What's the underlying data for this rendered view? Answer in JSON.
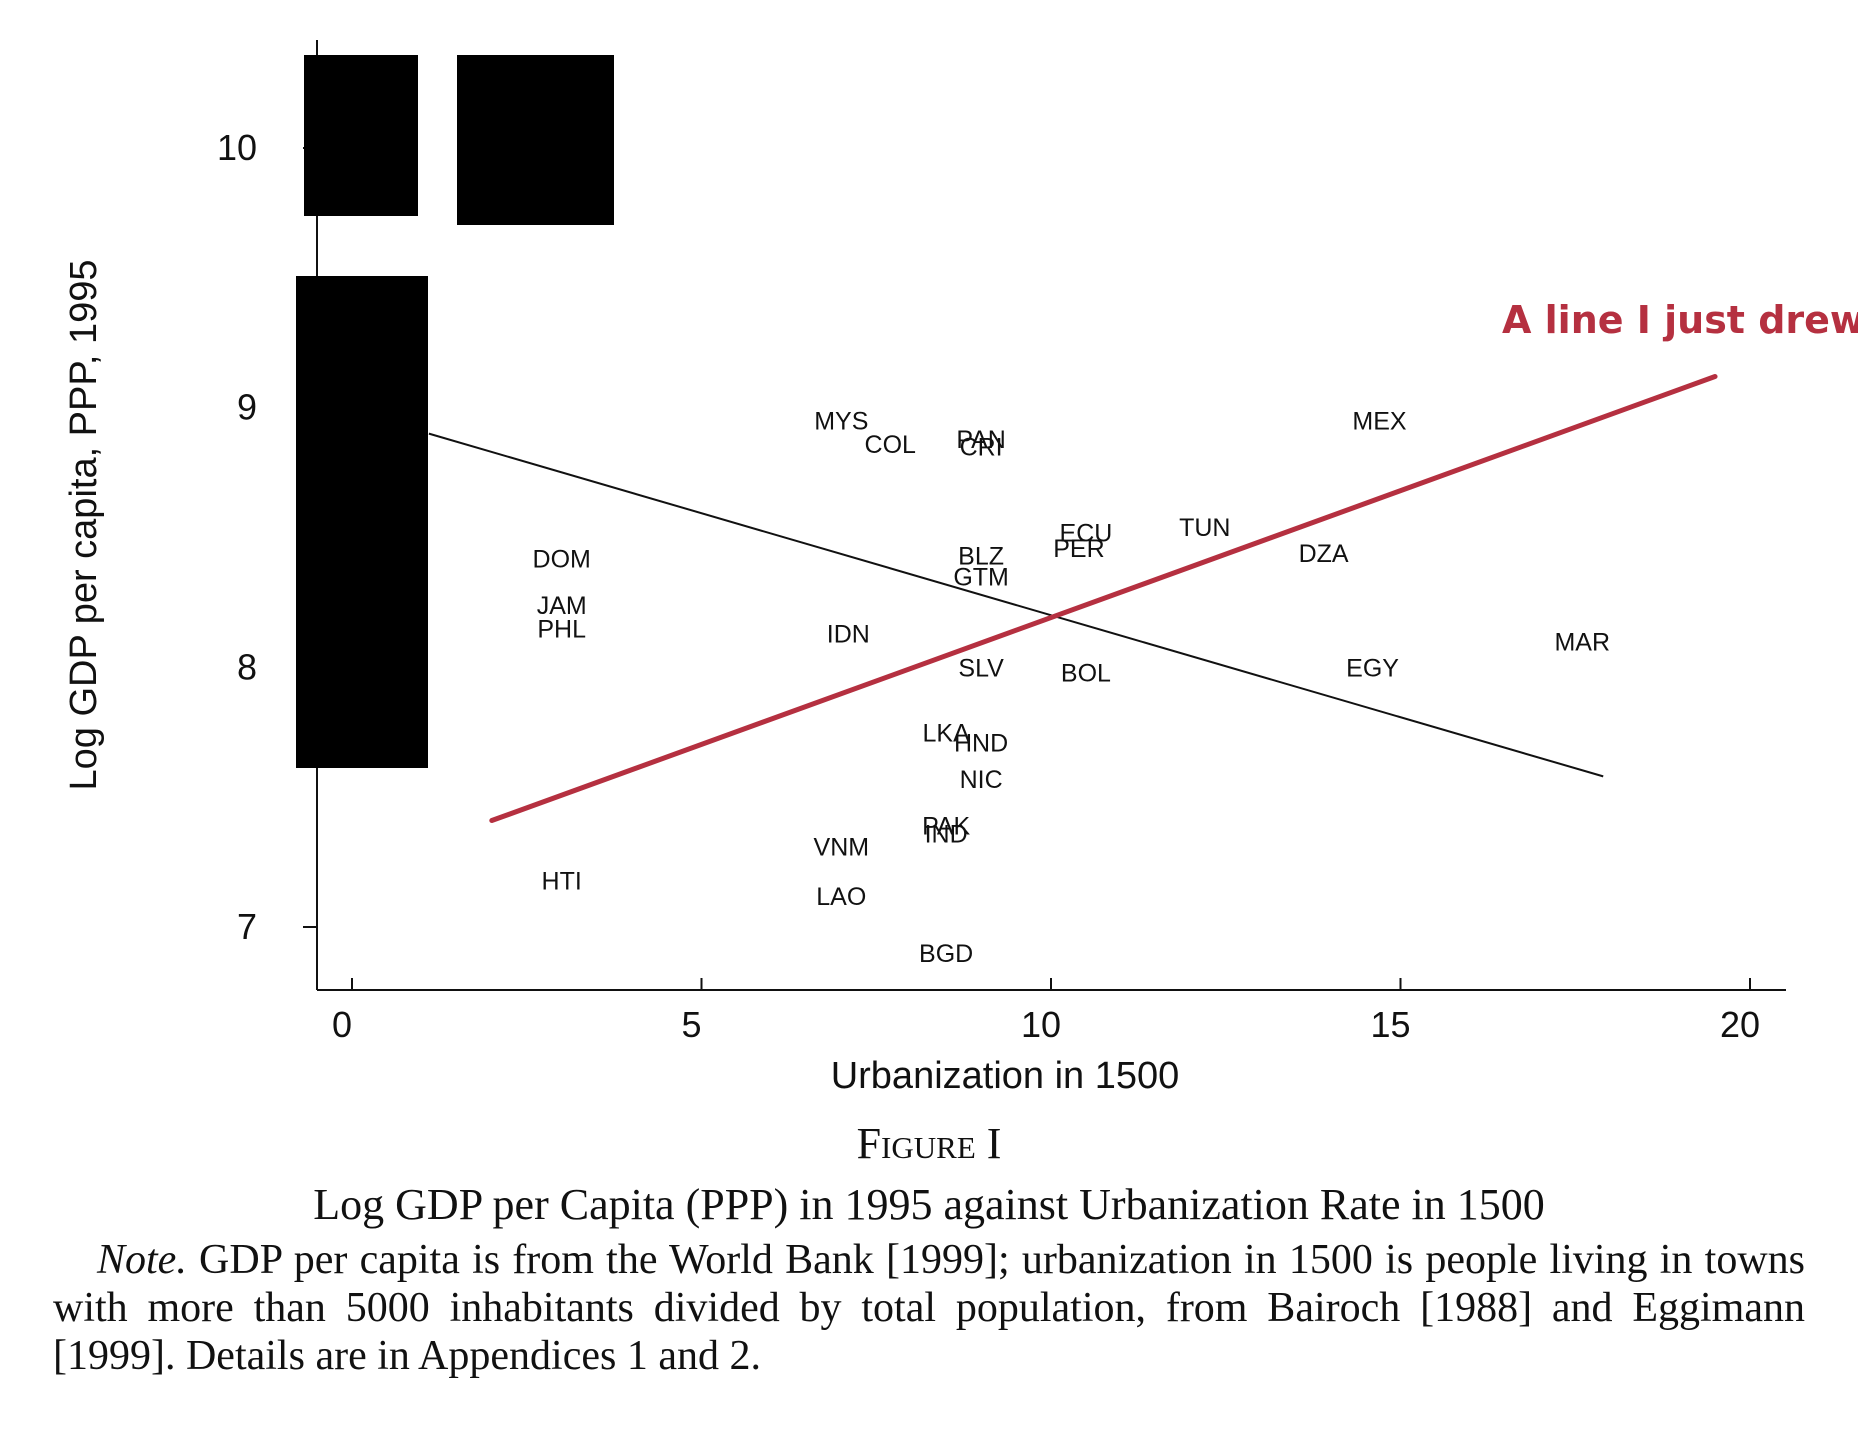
{
  "chart_data": {
    "type": "scatter",
    "xlabel": "Urbanization in 1500",
    "ylabel": "Log GDP per capita, PPP, 1995",
    "xlim": [
      -0.5,
      20.5
    ],
    "ylim": [
      6.77,
      10.3
    ],
    "xticks": [
      0,
      5,
      10,
      15,
      20
    ],
    "yticks": [
      7,
      8,
      9,
      10
    ],
    "grid": false,
    "points": [
      {
        "label": "MYS",
        "x": 7.0,
        "y": 8.95
      },
      {
        "label": "COL",
        "x": 7.7,
        "y": 8.86
      },
      {
        "label": "PAN",
        "x": 9.0,
        "y": 8.88
      },
      {
        "label": "CRI",
        "x": 9.0,
        "y": 8.85
      },
      {
        "label": "MEX",
        "x": 14.7,
        "y": 8.95
      },
      {
        "label": "DOM",
        "x": 3.0,
        "y": 8.42
      },
      {
        "label": "ECU",
        "x": 10.5,
        "y": 8.52
      },
      {
        "label": "PER",
        "x": 10.4,
        "y": 8.46
      },
      {
        "label": "TUN",
        "x": 12.2,
        "y": 8.54
      },
      {
        "label": "DZA",
        "x": 13.9,
        "y": 8.44
      },
      {
        "label": "BLZ",
        "x": 9.0,
        "y": 8.43
      },
      {
        "label": "GTM",
        "x": 9.0,
        "y": 8.35
      },
      {
        "label": "JAM",
        "x": 3.0,
        "y": 8.24
      },
      {
        "label": "PHL",
        "x": 3.0,
        "y": 8.15
      },
      {
        "label": "IDN",
        "x": 7.1,
        "y": 8.13
      },
      {
        "label": "MAR",
        "x": 17.6,
        "y": 8.1
      },
      {
        "label": "SLV",
        "x": 9.0,
        "y": 8.0
      },
      {
        "label": "BOL",
        "x": 10.5,
        "y": 7.98
      },
      {
        "label": "EGY",
        "x": 14.6,
        "y": 8.0
      },
      {
        "label": "LKA",
        "x": 8.5,
        "y": 7.75
      },
      {
        "label": "HND",
        "x": 9.0,
        "y": 7.71
      },
      {
        "label": "NIC",
        "x": 9.0,
        "y": 7.57
      },
      {
        "label": "PAK",
        "x": 8.5,
        "y": 7.39
      },
      {
        "label": "IND",
        "x": 8.5,
        "y": 7.36
      },
      {
        "label": "VNM",
        "x": 7.0,
        "y": 7.31
      },
      {
        "label": "HTI",
        "x": 3.0,
        "y": 7.18
      },
      {
        "label": "LAO",
        "x": 7.0,
        "y": 7.12
      },
      {
        "label": "BGD",
        "x": 8.5,
        "y": 6.9
      }
    ],
    "fit_line": {
      "x1": 1.1,
      "y1": 8.9,
      "x2": 17.9,
      "y2": 7.58
    },
    "drawn_line": {
      "x1": 2.0,
      "y1": 7.41,
      "x2": 19.5,
      "y2": 9.12,
      "color": "#b53040"
    },
    "annotation": "A line I just drew",
    "redaction_color": "#000000"
  },
  "caption": {
    "figure_label": "Figure I",
    "title": "Log GDP per Capita (PPP) in 1995 against Urbanization Rate in 1500",
    "note_label": "Note.",
    "note_text": " GDP per capita is from the World Bank [1999]; urbanization in 1500 is people living in towns with more than 5000 inhabitants divided by total population, from Bairoch [1988] and Eggimann [1999]. Details are in Appendices 1 and 2."
  }
}
